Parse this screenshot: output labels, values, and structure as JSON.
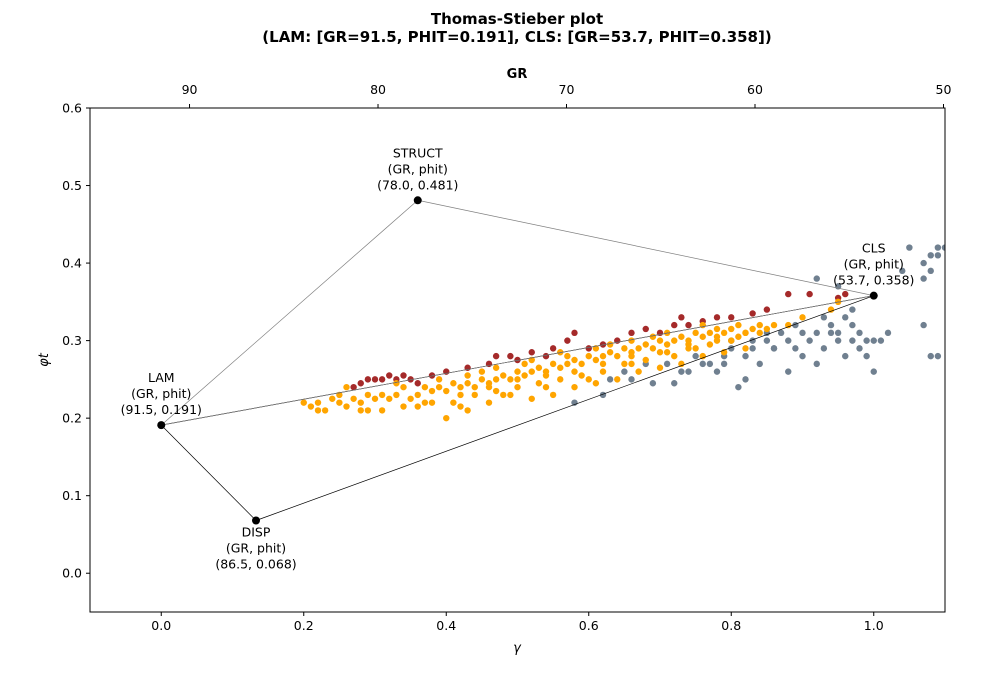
{
  "chart_data": {
    "type": "scatter",
    "title_line1": "Thomas-Stieber plot",
    "title_line2": "(LAM: [GR=91.5, PHIT=0.191], CLS: [GR=53.7, PHIT=0.358])",
    "xlabel": "γ",
    "ylabel": "φt",
    "top_xlabel": "GR",
    "xlim": [
      -0.1,
      1.1
    ],
    "ylim": [
      -0.05,
      0.6
    ],
    "top_xlim": [
      95.28,
      49.92
    ],
    "x_ticks": [
      0.0,
      0.2,
      0.4,
      0.6,
      0.8,
      1.0
    ],
    "x_tick_labels": [
      "0.0",
      "0.2",
      "0.4",
      "0.6",
      "0.8",
      "1.0"
    ],
    "y_ticks": [
      0.0,
      0.1,
      0.2,
      0.3,
      0.4,
      0.5,
      0.6
    ],
    "y_tick_labels": [
      "0.0",
      "0.1",
      "0.2",
      "0.3",
      "0.4",
      "0.5",
      "0.6"
    ],
    "top_ticks": [
      90,
      80,
      70,
      60,
      50
    ],
    "top_tick_labels": [
      "90",
      "80",
      "70",
      "60",
      "50"
    ],
    "endpoints": [
      {
        "name": "LAM",
        "x": 0.0,
        "y": 0.191,
        "lines": [
          "LAM",
          "(GR, phit)",
          "(91.5, 0.191)"
        ],
        "pos": "above"
      },
      {
        "name": "CLS",
        "x": 1.0,
        "y": 0.358,
        "lines": [
          "CLS",
          "(GR, phit)",
          "(53.7, 0.358)"
        ],
        "pos": "above"
      },
      {
        "name": "DISP",
        "x": 0.133,
        "y": 0.068,
        "lines": [
          "DISP",
          "(GR, phit)",
          "(86.5, 0.068)"
        ],
        "pos": "below"
      },
      {
        "name": "STRUCT",
        "x": 0.36,
        "y": 0.481,
        "lines": [
          "STRUCT",
          "(GR, phit)",
          "(78.0, 0.481)"
        ],
        "pos": "above"
      }
    ],
    "triangles": [
      {
        "points": [
          "LAM",
          "CLS",
          "DISP"
        ],
        "color": "#000000"
      },
      {
        "points": [
          "LAM",
          "STRUCT",
          "CLS"
        ],
        "color": "#808080"
      }
    ],
    "series": [
      {
        "color": "#708090",
        "points": [
          [
            0.58,
            0.22
          ],
          [
            0.62,
            0.23
          ],
          [
            0.66,
            0.25
          ],
          [
            0.69,
            0.245
          ],
          [
            0.72,
            0.245
          ],
          [
            0.74,
            0.26
          ],
          [
            0.75,
            0.28
          ],
          [
            0.77,
            0.27
          ],
          [
            0.78,
            0.26
          ],
          [
            0.79,
            0.28
          ],
          [
            0.8,
            0.3
          ],
          [
            0.81,
            0.24
          ],
          [
            0.82,
            0.28
          ],
          [
            0.83,
            0.29
          ],
          [
            0.84,
            0.27
          ],
          [
            0.85,
            0.3
          ],
          [
            0.86,
            0.29
          ],
          [
            0.87,
            0.31
          ],
          [
            0.88,
            0.3
          ],
          [
            0.89,
            0.29
          ],
          [
            0.9,
            0.31
          ],
          [
            0.91,
            0.3
          ],
          [
            0.92,
            0.27
          ],
          [
            0.93,
            0.29
          ],
          [
            0.94,
            0.32
          ],
          [
            0.95,
            0.31
          ],
          [
            0.96,
            0.28
          ],
          [
            0.97,
            0.3
          ],
          [
            0.98,
            0.29
          ],
          [
            0.99,
            0.28
          ],
          [
            1.0,
            0.26
          ],
          [
            1.01,
            0.3
          ],
          [
            1.02,
            0.31
          ],
          [
            0.92,
            0.38
          ],
          [
            0.95,
            0.37
          ],
          [
            0.97,
            0.34
          ],
          [
            0.93,
            0.33
          ],
          [
            0.96,
            0.33
          ],
          [
            0.98,
            0.31
          ],
          [
            0.99,
            0.3
          ],
          [
            1.07,
            0.32
          ],
          [
            1.08,
            0.28
          ],
          [
            1.09,
            0.28
          ],
          [
            1.07,
            0.4
          ],
          [
            1.08,
            0.41
          ],
          [
            1.09,
            0.42
          ],
          [
            1.1,
            0.42
          ],
          [
            1.09,
            0.41
          ],
          [
            1.08,
            0.39
          ],
          [
            1.07,
            0.38
          ],
          [
            1.05,
            0.42
          ],
          [
            1.04,
            0.39
          ],
          [
            0.94,
            0.31
          ],
          [
            0.9,
            0.28
          ],
          [
            0.88,
            0.26
          ],
          [
            0.86,
            0.29
          ],
          [
            0.83,
            0.3
          ],
          [
            0.82,
            0.25
          ],
          [
            0.79,
            0.27
          ],
          [
            0.76,
            0.27
          ],
          [
            0.73,
            0.26
          ],
          [
            0.71,
            0.27
          ],
          [
            0.68,
            0.27
          ],
          [
            0.65,
            0.26
          ],
          [
            0.63,
            0.25
          ],
          [
            0.92,
            0.31
          ],
          [
            0.95,
            0.3
          ],
          [
            0.97,
            0.32
          ],
          [
            1.0,
            0.3
          ],
          [
            0.89,
            0.32
          ],
          [
            0.85,
            0.31
          ],
          [
            0.8,
            0.29
          ]
        ]
      },
      {
        "color": "#a52a2a",
        "points": [
          [
            0.27,
            0.24
          ],
          [
            0.28,
            0.245
          ],
          [
            0.29,
            0.25
          ],
          [
            0.31,
            0.25
          ],
          [
            0.32,
            0.255
          ],
          [
            0.33,
            0.25
          ],
          [
            0.34,
            0.255
          ],
          [
            0.35,
            0.25
          ],
          [
            0.36,
            0.245
          ],
          [
            0.38,
            0.255
          ],
          [
            0.4,
            0.26
          ],
          [
            0.43,
            0.265
          ],
          [
            0.46,
            0.27
          ],
          [
            0.47,
            0.28
          ],
          [
            0.5,
            0.275
          ],
          [
            0.52,
            0.285
          ],
          [
            0.54,
            0.28
          ],
          [
            0.57,
            0.3
          ],
          [
            0.58,
            0.31
          ],
          [
            0.6,
            0.29
          ],
          [
            0.62,
            0.295
          ],
          [
            0.64,
            0.3
          ],
          [
            0.66,
            0.31
          ],
          [
            0.68,
            0.315
          ],
          [
            0.7,
            0.31
          ],
          [
            0.72,
            0.32
          ],
          [
            0.74,
            0.32
          ],
          [
            0.76,
            0.325
          ],
          [
            0.78,
            0.33
          ],
          [
            0.8,
            0.33
          ],
          [
            0.83,
            0.335
          ],
          [
            0.85,
            0.34
          ],
          [
            0.88,
            0.36
          ],
          [
            0.91,
            0.36
          ],
          [
            0.95,
            0.355
          ],
          [
            0.96,
            0.36
          ],
          [
            0.3,
            0.25
          ],
          [
            0.49,
            0.28
          ],
          [
            0.55,
            0.29
          ],
          [
            0.73,
            0.33
          ]
        ]
      },
      {
        "color": "#ffa500",
        "points": [
          [
            0.2,
            0.22
          ],
          [
            0.21,
            0.215
          ],
          [
            0.22,
            0.22
          ],
          [
            0.23,
            0.21
          ],
          [
            0.24,
            0.225
          ],
          [
            0.25,
            0.22
          ],
          [
            0.26,
            0.215
          ],
          [
            0.27,
            0.225
          ],
          [
            0.28,
            0.22
          ],
          [
            0.29,
            0.23
          ],
          [
            0.3,
            0.225
          ],
          [
            0.31,
            0.23
          ],
          [
            0.32,
            0.225
          ],
          [
            0.33,
            0.23
          ],
          [
            0.34,
            0.24
          ],
          [
            0.35,
            0.225
          ],
          [
            0.36,
            0.23
          ],
          [
            0.37,
            0.24
          ],
          [
            0.38,
            0.235
          ],
          [
            0.39,
            0.24
          ],
          [
            0.4,
            0.235
          ],
          [
            0.41,
            0.245
          ],
          [
            0.42,
            0.24
          ],
          [
            0.43,
            0.245
          ],
          [
            0.44,
            0.24
          ],
          [
            0.45,
            0.25
          ],
          [
            0.46,
            0.245
          ],
          [
            0.47,
            0.25
          ],
          [
            0.48,
            0.255
          ],
          [
            0.49,
            0.25
          ],
          [
            0.5,
            0.26
          ],
          [
            0.51,
            0.255
          ],
          [
            0.52,
            0.26
          ],
          [
            0.53,
            0.265
          ],
          [
            0.54,
            0.26
          ],
          [
            0.55,
            0.27
          ],
          [
            0.56,
            0.265
          ],
          [
            0.57,
            0.27
          ],
          [
            0.58,
            0.275
          ],
          [
            0.59,
            0.27
          ],
          [
            0.6,
            0.28
          ],
          [
            0.61,
            0.275
          ],
          [
            0.62,
            0.28
          ],
          [
            0.63,
            0.285
          ],
          [
            0.64,
            0.28
          ],
          [
            0.65,
            0.29
          ],
          [
            0.66,
            0.285
          ],
          [
            0.67,
            0.29
          ],
          [
            0.68,
            0.295
          ],
          [
            0.69,
            0.29
          ],
          [
            0.7,
            0.3
          ],
          [
            0.71,
            0.295
          ],
          [
            0.72,
            0.3
          ],
          [
            0.73,
            0.305
          ],
          [
            0.74,
            0.3
          ],
          [
            0.75,
            0.31
          ],
          [
            0.76,
            0.305
          ],
          [
            0.77,
            0.31
          ],
          [
            0.78,
            0.315
          ],
          [
            0.79,
            0.31
          ],
          [
            0.8,
            0.315
          ],
          [
            0.81,
            0.32
          ],
          [
            0.82,
            0.31
          ],
          [
            0.83,
            0.315
          ],
          [
            0.84,
            0.32
          ],
          [
            0.85,
            0.315
          ],
          [
            0.86,
            0.32
          ],
          [
            0.94,
            0.34
          ],
          [
            0.95,
            0.35
          ],
          [
            0.22,
            0.21
          ],
          [
            0.25,
            0.23
          ],
          [
            0.28,
            0.21
          ],
          [
            0.31,
            0.21
          ],
          [
            0.34,
            0.215
          ],
          [
            0.37,
            0.22
          ],
          [
            0.4,
            0.2
          ],
          [
            0.43,
            0.21
          ],
          [
            0.46,
            0.22
          ],
          [
            0.49,
            0.23
          ],
          [
            0.52,
            0.225
          ],
          [
            0.55,
            0.23
          ],
          [
            0.58,
            0.24
          ],
          [
            0.61,
            0.245
          ],
          [
            0.64,
            0.25
          ],
          [
            0.67,
            0.26
          ],
          [
            0.7,
            0.265
          ],
          [
            0.73,
            0.27
          ],
          [
            0.76,
            0.28
          ],
          [
            0.79,
            0.285
          ],
          [
            0.82,
            0.29
          ],
          [
            0.26,
            0.24
          ],
          [
            0.29,
            0.21
          ],
          [
            0.33,
            0.245
          ],
          [
            0.36,
            0.215
          ],
          [
            0.39,
            0.25
          ],
          [
            0.42,
            0.215
          ],
          [
            0.45,
            0.26
          ],
          [
            0.48,
            0.23
          ],
          [
            0.51,
            0.27
          ],
          [
            0.54,
            0.24
          ],
          [
            0.57,
            0.28
          ],
          [
            0.6,
            0.25
          ],
          [
            0.63,
            0.295
          ],
          [
            0.66,
            0.27
          ],
          [
            0.69,
            0.305
          ],
          [
            0.72,
            0.28
          ],
          [
            0.75,
            0.29
          ],
          [
            0.78,
            0.3
          ],
          [
            0.81,
            0.305
          ],
          [
            0.84,
            0.31
          ],
          [
            0.41,
            0.22
          ],
          [
            0.44,
            0.23
          ],
          [
            0.47,
            0.235
          ],
          [
            0.5,
            0.24
          ],
          [
            0.53,
            0.245
          ],
          [
            0.56,
            0.25
          ],
          [
            0.59,
            0.255
          ],
          [
            0.62,
            0.26
          ],
          [
            0.65,
            0.27
          ],
          [
            0.68,
            0.275
          ],
          [
            0.71,
            0.285
          ],
          [
            0.74,
            0.29
          ],
          [
            0.77,
            0.295
          ],
          [
            0.8,
            0.3
          ],
          [
            0.43,
            0.255
          ],
          [
            0.47,
            0.265
          ],
          [
            0.52,
            0.275
          ],
          [
            0.56,
            0.285
          ],
          [
            0.61,
            0.29
          ],
          [
            0.66,
            0.3
          ],
          [
            0.71,
            0.31
          ],
          [
            0.76,
            0.32
          ],
          [
            0.38,
            0.22
          ],
          [
            0.42,
            0.23
          ],
          [
            0.46,
            0.24
          ],
          [
            0.5,
            0.25
          ],
          [
            0.54,
            0.255
          ],
          [
            0.58,
            0.26
          ],
          [
            0.62,
            0.27
          ],
          [
            0.66,
            0.28
          ],
          [
            0.7,
            0.285
          ],
          [
            0.74,
            0.295
          ],
          [
            0.78,
            0.305
          ],
          [
            0.82,
            0.31
          ],
          [
            0.9,
            0.33
          ],
          [
            0.88,
            0.32
          ]
        ]
      }
    ]
  }
}
